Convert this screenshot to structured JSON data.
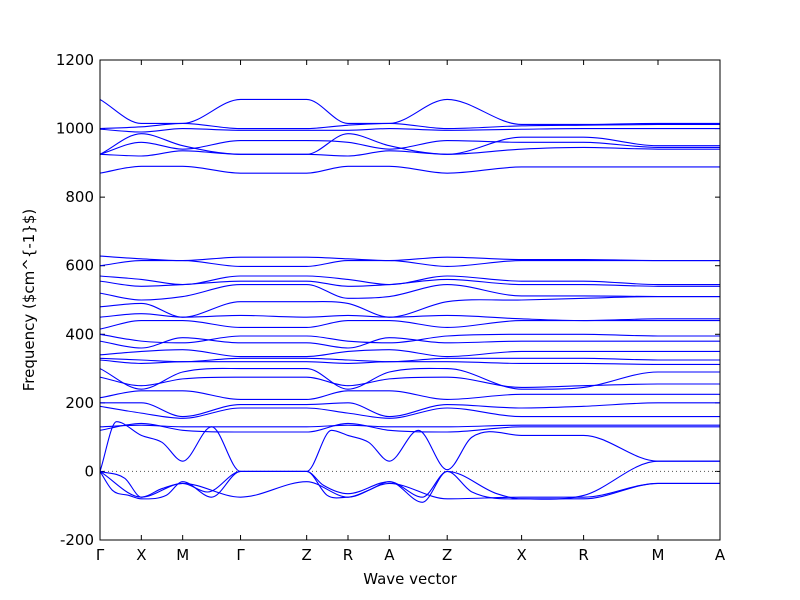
{
  "chart_data": {
    "type": "line",
    "title": "",
    "xlabel": "Wave vector",
    "ylabel": "Frequency ($cm^{-1}$)",
    "ylim": [
      -200,
      1200
    ],
    "yticks": [
      -200,
      0,
      200,
      400,
      600,
      800,
      1000,
      1200
    ],
    "x_ticks": [
      {
        "label": "Γ",
        "pos": 0.0
      },
      {
        "label": "X",
        "pos": 0.5
      },
      {
        "label": "M",
        "pos": 1.0
      },
      {
        "label": "Γ",
        "pos": 1.7
      },
      {
        "label": "Z",
        "pos": 2.5
      },
      {
        "label": "R",
        "pos": 3.0
      },
      {
        "label": "A",
        "pos": 3.5
      },
      {
        "label": "Z",
        "pos": 4.2
      },
      {
        "label": "X",
        "pos": 5.1
      },
      {
        "label": "R",
        "pos": 5.85
      },
      {
        "label": "M",
        "pos": 6.75
      },
      {
        "label": "A",
        "pos": 7.5
      }
    ],
    "xlim": [
      0,
      7.5
    ],
    "zero_line": "dotted",
    "grid": false,
    "line_color": "#0000ff",
    "series": [
      {
        "x": [
          0,
          0.5,
          1.0,
          1.7,
          2.5,
          3.0,
          3.5,
          4.2,
          5.1,
          5.85,
          6.75,
          7.5
        ],
        "values": [
          1085,
          1015,
          1015,
          1085,
          1085,
          1015,
          1015,
          1085,
          1012,
          1012,
          1015,
          1015
        ]
      },
      {
        "x": [
          0,
          0.5,
          1.0,
          1.7,
          2.5,
          3.0,
          3.5,
          4.2,
          5.1,
          5.85,
          6.75,
          7.5
        ],
        "values": [
          1000,
          1005,
          1015,
          1000,
          1000,
          1010,
          1015,
          1000,
          1008,
          1010,
          1012,
          1012
        ]
      },
      {
        "x": [
          0,
          0.5,
          1.0,
          1.7,
          2.5,
          3.0,
          3.5,
          4.2,
          5.1,
          5.85,
          6.75,
          7.5
        ],
        "values": [
          998,
          990,
          1000,
          995,
          995,
          995,
          1000,
          995,
          998,
          1000,
          1000,
          1000
        ]
      },
      {
        "x": [
          0,
          0.5,
          1.0,
          1.7,
          2.5,
          3.0,
          3.5,
          4.2,
          5.1,
          5.85,
          6.75,
          7.5
        ],
        "values": [
          925,
          985,
          950,
          925,
          925,
          985,
          950,
          925,
          975,
          975,
          950,
          950
        ]
      },
      {
        "x": [
          0,
          0.5,
          1.0,
          1.7,
          2.5,
          3.0,
          3.5,
          4.2,
          5.1,
          5.85,
          6.75,
          7.5
        ],
        "values": [
          925,
          960,
          940,
          965,
          965,
          960,
          940,
          965,
          960,
          960,
          945,
          945
        ]
      },
      {
        "x": [
          0,
          0.5,
          1.0,
          1.7,
          2.5,
          3.0,
          3.5,
          4.2,
          5.1,
          5.85,
          6.75,
          7.5
        ],
        "values": [
          925,
          920,
          935,
          925,
          925,
          920,
          935,
          925,
          940,
          945,
          940,
          940
        ]
      },
      {
        "x": [
          0,
          0.5,
          1.0,
          1.7,
          2.5,
          3.0,
          3.5,
          4.2,
          5.1,
          5.85,
          6.75,
          7.5
        ],
        "values": [
          870,
          890,
          890,
          870,
          870,
          890,
          890,
          870,
          888,
          888,
          888,
          888
        ]
      },
      {
        "x": [
          0,
          0.5,
          1.0,
          1.7,
          2.5,
          3.0,
          3.5,
          4.2,
          5.1,
          5.85,
          6.75,
          7.5
        ],
        "values": [
          628,
          620,
          615,
          625,
          625,
          620,
          615,
          625,
          618,
          618,
          615,
          615
        ]
      },
      {
        "x": [
          0,
          0.5,
          1.0,
          1.7,
          2.5,
          3.0,
          3.5,
          4.2,
          5.1,
          5.85,
          6.75,
          7.5
        ],
        "values": [
          600,
          615,
          615,
          598,
          598,
          615,
          615,
          598,
          615,
          615,
          615,
          615
        ]
      },
      {
        "x": [
          0,
          0.5,
          1.0,
          1.7,
          2.5,
          3.0,
          3.5,
          4.2,
          5.1,
          5.85,
          6.75,
          7.5
        ],
        "values": [
          570,
          560,
          545,
          570,
          570,
          560,
          545,
          570,
          555,
          555,
          545,
          545
        ]
      },
      {
        "x": [
          0,
          0.5,
          1.0,
          1.7,
          2.5,
          3.0,
          3.5,
          4.2,
          5.1,
          5.85,
          6.75,
          7.5
        ],
        "values": [
          555,
          540,
          545,
          555,
          555,
          540,
          545,
          560,
          545,
          545,
          540,
          540
        ]
      },
      {
        "x": [
          0,
          0.5,
          1.0,
          1.7,
          2.5,
          3.0,
          3.5,
          4.2,
          5.1,
          5.85,
          6.75,
          7.5
        ],
        "values": [
          520,
          500,
          510,
          545,
          545,
          505,
          510,
          545,
          512,
          512,
          510,
          510
        ]
      },
      {
        "x": [
          0,
          0.5,
          1.0,
          1.7,
          2.5,
          3.0,
          3.5,
          4.2,
          5.1,
          5.85,
          6.75,
          7.5
        ],
        "values": [
          480,
          490,
          450,
          495,
          495,
          490,
          450,
          495,
          500,
          505,
          510,
          510
        ]
      },
      {
        "x": [
          0,
          0.5,
          1.0,
          1.7,
          2.5,
          3.0,
          3.5,
          4.2,
          5.1,
          5.85,
          6.75,
          7.5
        ],
        "values": [
          450,
          460,
          450,
          455,
          450,
          455,
          450,
          455,
          445,
          440,
          445,
          445
        ]
      },
      {
        "x": [
          0,
          0.5,
          1.0,
          1.7,
          2.5,
          3.0,
          3.5,
          4.2,
          5.1,
          5.85,
          6.75,
          7.5
        ],
        "values": [
          415,
          440,
          440,
          420,
          420,
          440,
          440,
          420,
          440,
          440,
          440,
          440
        ]
      },
      {
        "x": [
          0,
          0.5,
          1.0,
          1.7,
          2.5,
          3.0,
          3.5,
          4.2,
          5.1,
          5.85,
          6.75,
          7.5
        ],
        "values": [
          400,
          380,
          375,
          395,
          395,
          380,
          375,
          395,
          400,
          400,
          395,
          395
        ]
      },
      {
        "x": [
          0,
          0.5,
          1.0,
          1.7,
          2.5,
          3.0,
          3.5,
          4.2,
          5.1,
          5.85,
          6.75,
          7.5
        ],
        "values": [
          380,
          360,
          390,
          375,
          375,
          360,
          390,
          375,
          380,
          380,
          380,
          380
        ]
      },
      {
        "x": [
          0,
          0.5,
          1.0,
          1.7,
          2.5,
          3.0,
          3.5,
          4.2,
          5.1,
          5.85,
          6.75,
          7.5
        ],
        "values": [
          340,
          350,
          355,
          335,
          335,
          350,
          355,
          335,
          350,
          350,
          350,
          350
        ]
      },
      {
        "x": [
          0,
          0.5,
          1.0,
          1.7,
          2.5,
          3.0,
          3.5,
          4.2,
          5.1,
          5.85,
          6.75,
          7.5
        ],
        "values": [
          330,
          325,
          320,
          330,
          330,
          325,
          320,
          330,
          330,
          330,
          325,
          325
        ]
      },
      {
        "x": [
          0,
          0.5,
          1.0,
          1.7,
          2.5,
          3.0,
          3.5,
          4.2,
          5.1,
          5.85,
          6.75,
          7.5
        ],
        "values": [
          325,
          315,
          320,
          320,
          320,
          315,
          320,
          320,
          315,
          315,
          312,
          312
        ]
      },
      {
        "x": [
          0,
          0.5,
          1.0,
          1.7,
          2.5,
          3.0,
          3.5,
          4.2,
          5.1,
          5.85,
          6.75,
          7.5
        ],
        "values": [
          300,
          240,
          290,
          300,
          300,
          240,
          290,
          300,
          240,
          245,
          290,
          290
        ]
      },
      {
        "x": [
          0,
          0.5,
          1.0,
          1.7,
          2.5,
          3.0,
          3.5,
          4.2,
          5.1,
          5.85,
          6.75,
          7.5
        ],
        "values": [
          275,
          250,
          270,
          275,
          275,
          250,
          270,
          275,
          245,
          250,
          255,
          255
        ]
      },
      {
        "x": [
          0,
          0.5,
          1.0,
          1.7,
          2.5,
          3.0,
          3.5,
          4.2,
          5.1,
          5.85,
          6.75,
          7.5
        ],
        "values": [
          215,
          235,
          235,
          210,
          210,
          235,
          235,
          210,
          225,
          225,
          225,
          225
        ]
      },
      {
        "x": [
          0,
          0.5,
          1.0,
          1.7,
          2.5,
          3.0,
          3.5,
          4.2,
          5.1,
          5.85,
          6.75,
          7.5
        ],
        "values": [
          200,
          200,
          160,
          195,
          195,
          200,
          160,
          195,
          185,
          190,
          200,
          200
        ]
      },
      {
        "x": [
          0,
          0.5,
          1.0,
          1.7,
          2.5,
          3.0,
          3.5,
          4.2,
          5.1,
          5.85,
          6.75,
          7.5
        ],
        "values": [
          190,
          170,
          155,
          185,
          185,
          170,
          155,
          185,
          160,
          160,
          160,
          160
        ]
      },
      {
        "x": [
          0,
          0.5,
          1.0,
          1.7,
          2.5,
          3.0,
          3.5,
          4.2,
          5.1,
          5.85,
          6.75,
          7.5
        ],
        "values": [
          130,
          135,
          130,
          130,
          130,
          135,
          130,
          130,
          135,
          135,
          135,
          135
        ]
      },
      {
        "x": [
          0,
          0.5,
          1.0,
          1.7,
          2.5,
          3.0,
          3.5,
          4.2,
          5.1,
          5.85,
          6.75,
          7.5
        ],
        "values": [
          120,
          140,
          120,
          115,
          115,
          140,
          120,
          115,
          130,
          130,
          130,
          130
        ]
      },
      {
        "x": [
          0,
          0.2,
          0.5,
          0.75,
          1.0,
          1.35,
          1.7,
          2.5,
          2.8,
          3.0,
          3.25,
          3.5,
          3.85,
          4.2,
          4.5,
          5.1,
          5.85,
          6.75,
          7.5
        ],
        "values": [
          0,
          145,
          105,
          85,
          30,
          130,
          0,
          0,
          120,
          105,
          85,
          30,
          120,
          5,
          100,
          105,
          105,
          30,
          30
        ]
      },
      {
        "x": [
          0,
          0.5,
          1.0,
          1.7,
          2.5,
          3.0,
          3.5,
          4.2,
          5.1,
          5.85,
          6.75,
          7.5
        ],
        "values": [
          0,
          -75,
          -35,
          -75,
          -30,
          -75,
          -35,
          -80,
          -75,
          -75,
          -35,
          -35
        ]
      },
      {
        "x": [
          0,
          0.15,
          0.35,
          0.5,
          0.8,
          1.0,
          1.35,
          1.7,
          2.5,
          2.7,
          3.0,
          3.5,
          3.9,
          4.2,
          4.5,
          5.1,
          5.85,
          6.75,
          7.5
        ],
        "values": [
          0,
          -55,
          -70,
          -80,
          -70,
          -30,
          -75,
          0,
          0,
          -40,
          -65,
          -30,
          -90,
          0,
          -60,
          -80,
          -80,
          -35,
          -35
        ]
      },
      {
        "x": [
          0,
          0.3,
          0.5,
          0.75,
          1.0,
          1.3,
          1.7,
          2.5,
          2.75,
          3.0,
          3.25,
          3.5,
          3.9,
          4.2,
          4.8,
          5.1,
          5.85,
          6.75,
          7.5
        ],
        "values": [
          0,
          -20,
          -75,
          -50,
          -35,
          -60,
          0,
          0,
          -70,
          -75,
          -55,
          -30,
          -75,
          0,
          -65,
          -80,
          -70,
          30,
          30
        ]
      }
    ]
  }
}
